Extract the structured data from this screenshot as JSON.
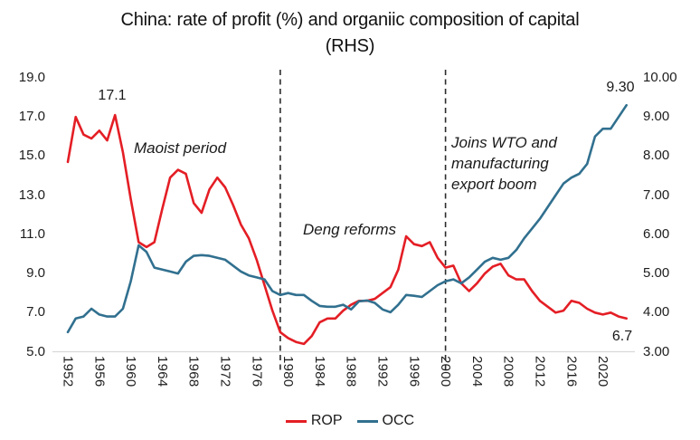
{
  "title": {
    "line1": "China: rate of profit (%) and organiic composition of capital",
    "line2": "(RHS)"
  },
  "legend": {
    "items": [
      {
        "label": "ROP"
      },
      {
        "label": "OCC"
      }
    ]
  },
  "annotations": {
    "rop_peak": "17.1",
    "maoist": "Maoist period",
    "deng": "Deng reforms",
    "wto": "Joins WTO and\nmanufacturing\nexport boom",
    "occ_end": "9.30",
    "rop_end": "6.7"
  },
  "chart_data": {
    "type": "line",
    "title": "China: rate of profit (%) and organiic composition of capital (RHS)",
    "x_start": 1952,
    "x_end": 2023,
    "x_tick_labels": [
      "1952",
      "1956",
      "1960",
      "1964",
      "1968",
      "1972",
      "1976",
      "1980",
      "1984",
      "1988",
      "1992",
      "1996",
      "2000",
      "2004",
      "2008",
      "2012",
      "2016",
      "2020"
    ],
    "y_left": {
      "min": 5,
      "max": 19,
      "tick_labels": [
        "19.0",
        "17.0",
        "15.0",
        "13.0",
        "11.0",
        "9.0",
        "7.0",
        "5.0"
      ]
    },
    "y_right": {
      "min": 3,
      "max": 10,
      "tick_labels": [
        "10.00",
        "9.00",
        "8.00",
        "7.00",
        "6.00",
        "5.00",
        "4.00",
        "3.00"
      ]
    },
    "grid": "baseline only",
    "legend_position": "bottom center",
    "vlines": [
      {
        "x": 1979,
        "style": "dashed"
      },
      {
        "x": 2000,
        "style": "dashed"
      }
    ],
    "colors": {
      "baseline": "#d9d9d9",
      "vline": "#2b2b2b"
    },
    "series": [
      {
        "name": "ROP",
        "axis": "left",
        "color": "#e41e25",
        "values": [
          14.7,
          17.0,
          16.1,
          15.9,
          16.3,
          15.8,
          17.1,
          15.2,
          12.8,
          10.6,
          10.35,
          10.6,
          12.3,
          13.9,
          14.3,
          14.1,
          12.6,
          12.1,
          13.3,
          13.9,
          13.4,
          12.5,
          11.5,
          10.8,
          9.7,
          8.4,
          7.1,
          6.0,
          5.7,
          5.5,
          5.4,
          5.8,
          6.5,
          6.7,
          6.7,
          7.1,
          7.4,
          7.6,
          7.6,
          7.7,
          8.0,
          8.3,
          9.2,
          10.9,
          10.5,
          10.4,
          10.6,
          9.8,
          9.3,
          9.4,
          8.5,
          8.1,
          8.5,
          9.0,
          9.35,
          9.5,
          8.9,
          8.7,
          8.7,
          8.1,
          7.6,
          7.3,
          7.0,
          7.1,
          7.6,
          7.5,
          7.2,
          7.0,
          6.9,
          7.0,
          6.8,
          6.7
        ]
      },
      {
        "name": "OCC",
        "axis": "right",
        "color": "#31708f",
        "values": [
          3.5,
          3.85,
          3.9,
          4.1,
          3.95,
          3.9,
          3.9,
          4.1,
          4.8,
          5.72,
          5.55,
          5.15,
          5.1,
          5.05,
          5.0,
          5.3,
          5.45,
          5.47,
          5.45,
          5.4,
          5.35,
          5.2,
          5.05,
          4.95,
          4.9,
          4.85,
          4.55,
          4.45,
          4.5,
          4.45,
          4.45,
          4.3,
          4.17,
          4.15,
          4.15,
          4.2,
          4.08,
          4.29,
          4.31,
          4.25,
          4.08,
          4.01,
          4.2,
          4.45,
          4.43,
          4.4,
          4.55,
          4.7,
          4.8,
          4.85,
          4.75,
          4.9,
          5.1,
          5.3,
          5.4,
          5.35,
          5.4,
          5.6,
          5.9,
          6.15,
          6.4,
          6.7,
          7.0,
          7.3,
          7.45,
          7.55,
          7.8,
          8.5,
          8.7,
          8.7,
          9.0,
          9.3
        ]
      }
    ]
  }
}
